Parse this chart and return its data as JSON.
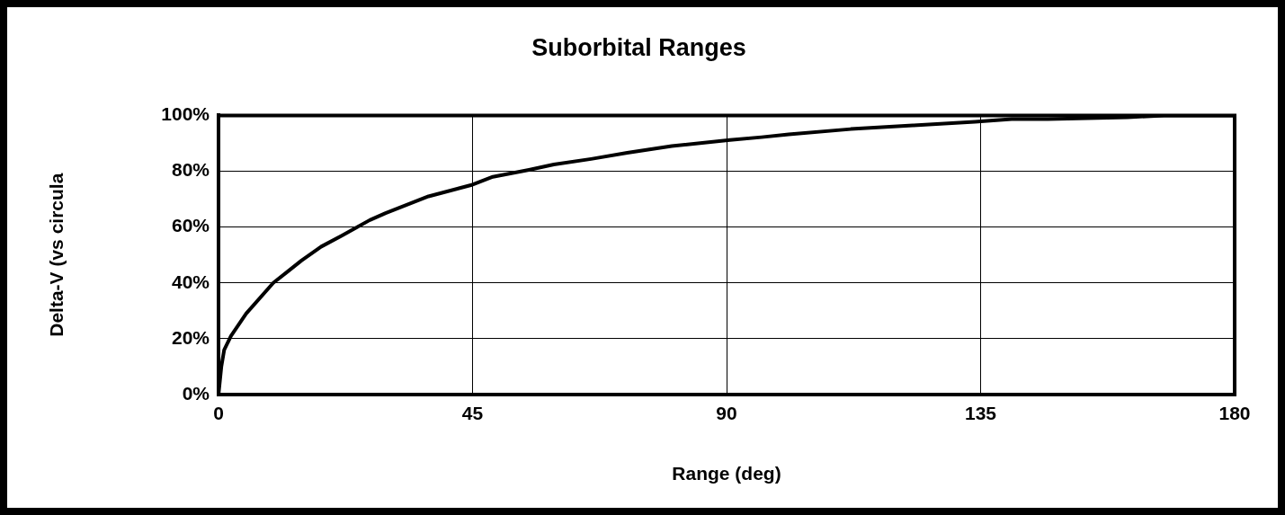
{
  "chart_data": {
    "type": "line",
    "title": "Suborbital Ranges",
    "xlabel": "Range (deg)",
    "ylabel": "Delta-V (vs circula",
    "xlim": [
      0,
      180
    ],
    "xticks": [
      0,
      45,
      90,
      135,
      180
    ],
    "ylim": [
      0,
      100
    ],
    "yticks": [
      {
        "value": 0,
        "label": "0%"
      },
      {
        "value": 20,
        "label": "20%"
      },
      {
        "value": 40,
        "label": "40%"
      },
      {
        "value": 60,
        "label": "60%"
      },
      {
        "value": 80,
        "label": "80%"
      },
      {
        "value": 100,
        "label": "100%"
      }
    ],
    "grid": true,
    "legend": false,
    "marker": "none",
    "line_style": "solid",
    "series": [
      {
        "color": "#000000",
        "x": [
          0,
          0.5,
          1,
          2.2,
          4.9,
          9.7,
          12.2,
          14.7,
          18.2,
          21.9,
          26.8,
          29.6,
          37.2,
          44.7,
          48.6,
          55,
          59.4,
          66,
          72.4,
          80.3,
          90.6,
          96.2,
          101,
          112,
          123,
          134,
          140.5,
          146.9,
          161,
          167.5,
          180
        ],
        "values": [
          0,
          10,
          16,
          21,
          29,
          40,
          44,
          48,
          53,
          57,
          62.5,
          65,
          71,
          75,
          78,
          80.5,
          82.4,
          84.4,
          86.6,
          89,
          91.2,
          92.2,
          93.2,
          95.1,
          96.4,
          97.7,
          98.7,
          98.7,
          99.3,
          100,
          100
        ]
      }
    ]
  }
}
